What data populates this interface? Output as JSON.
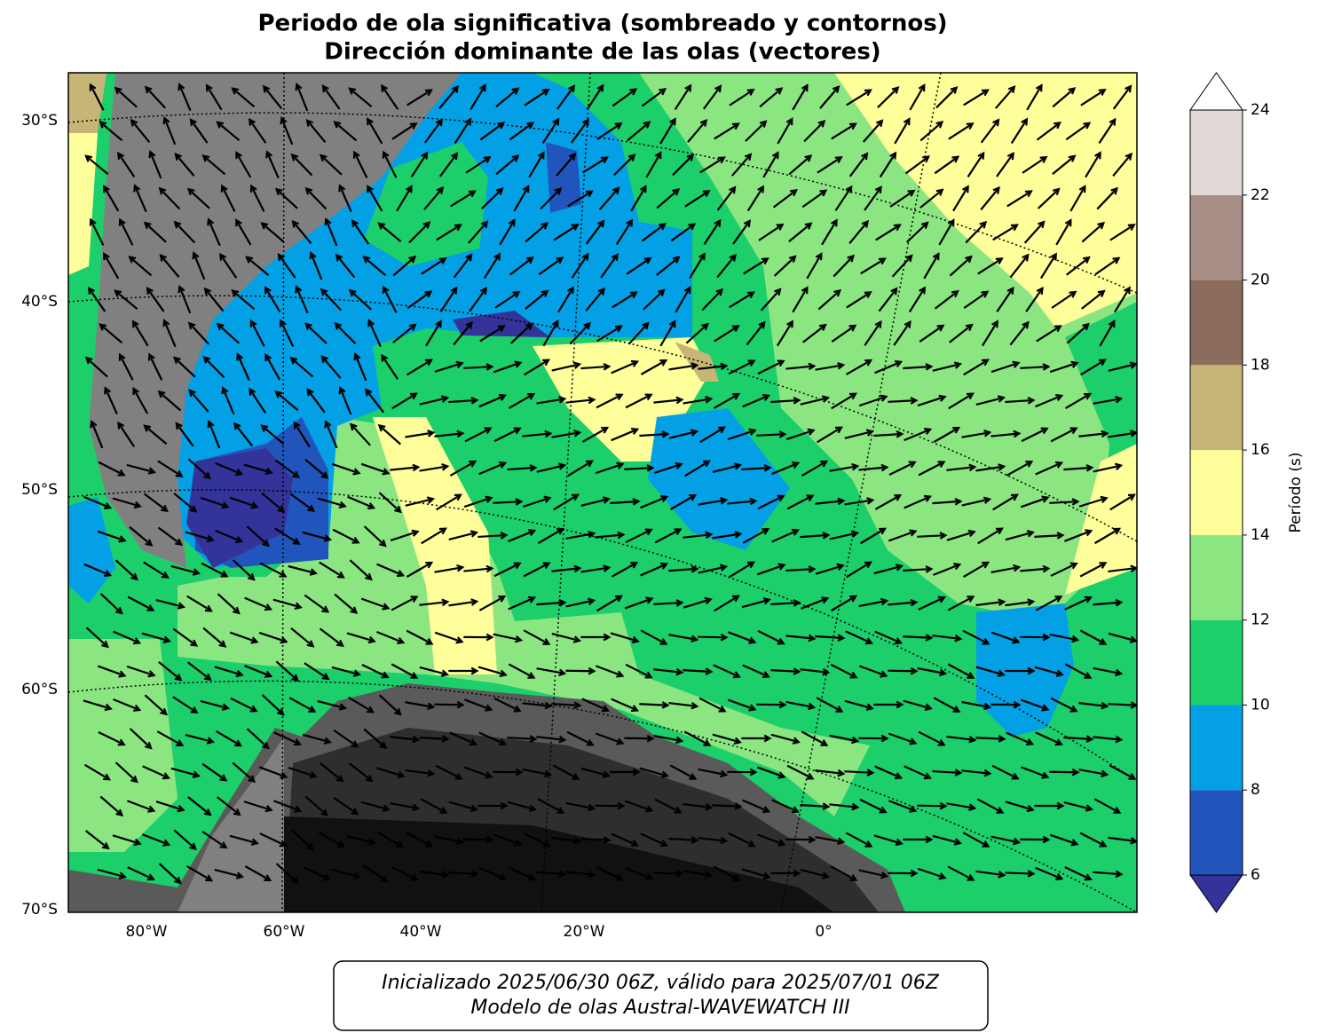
{
  "title": [
    "Periodo de ola significativa (sombreado y contornos)",
    "Dirección dominante de las olas (vectores)"
  ],
  "lat_labels": [
    "30°S",
    "40°S",
    "50°S",
    "60°S",
    "70°S"
  ],
  "lon_labels": [
    "80°W",
    "60°W",
    "40°W",
    "20°W",
    "0°"
  ],
  "colorbar": {
    "label": "Período (s)",
    "ticks": [
      6,
      8,
      10,
      12,
      14,
      16,
      18,
      20,
      22,
      24
    ],
    "colors": [
      "#2255bb",
      "#03a0e5",
      "#1ccf6b",
      "#8be682",
      "#fefe9a",
      "#c7b578",
      "#8c6c5c",
      "#a78f87",
      "#e1d9d8"
    ],
    "under_color": "#333399",
    "over_color": "#ffffff"
  },
  "footer": [
    "Inicializado 2025/06/30 06Z, válido para 2025/07/01 06Z",
    "Modelo de olas Austral-WAVEWATCH III"
  ]
}
